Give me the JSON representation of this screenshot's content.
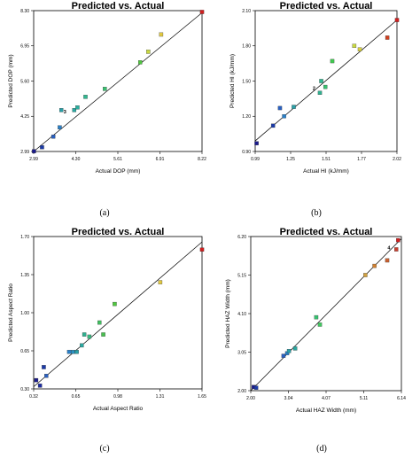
{
  "chart_data": [
    {
      "type": "scatter",
      "title": "Predicted vs. Actual",
      "xlabel": "Actual DOP (mm)",
      "ylabel": "Predicted DOP (mm)",
      "panel_label": "(a)",
      "xlim": [
        2.99,
        8.22
      ],
      "ylim": [
        2.99,
        8.3
      ],
      "xticks": [
        "2.99",
        "4.30",
        "5.61",
        "6.91",
        "8.22"
      ],
      "yticks": [
        "2.99",
        "4.25",
        "5.60",
        "6.95",
        "8.30"
      ],
      "annotations": [
        {
          "text": "3",
          "x": 4.1,
          "y": 4.5
        }
      ],
      "points": [
        {
          "x": 3.0,
          "y": 3.0,
          "color": "#1a1a8c"
        },
        {
          "x": 3.25,
          "y": 3.15,
          "color": "#1a3aa8"
        },
        {
          "x": 3.6,
          "y": 3.55,
          "color": "#2a60c0"
        },
        {
          "x": 3.8,
          "y": 3.9,
          "color": "#2a80c8"
        },
        {
          "x": 3.85,
          "y": 4.55,
          "color": "#2aa0a8"
        },
        {
          "x": 4.25,
          "y": 4.55,
          "color": "#2aa8a0"
        },
        {
          "x": 4.35,
          "y": 4.65,
          "color": "#2ab0a0"
        },
        {
          "x": 4.6,
          "y": 5.05,
          "color": "#30b890"
        },
        {
          "x": 5.2,
          "y": 5.35,
          "color": "#38c070"
        },
        {
          "x": 6.3,
          "y": 6.35,
          "color": "#50c840"
        },
        {
          "x": 6.55,
          "y": 6.75,
          "color": "#c8d840"
        },
        {
          "x": 6.95,
          "y": 7.4,
          "color": "#e0c840"
        },
        {
          "x": 8.22,
          "y": 8.25,
          "color": "#d02020"
        }
      ],
      "line": [
        [
          2.99,
          2.99
        ],
        [
          8.22,
          8.22
        ]
      ]
    },
    {
      "type": "scatter",
      "title": "Predicted vs. Actual",
      "xlabel": "Actual HI (kJ/mm)",
      "ylabel": "Predicted  HI (kJ/mm)",
      "panel_label": "(b)",
      "xlim": [
        0.99,
        2.02
      ],
      "ylim": [
        0.9,
        2.1
      ],
      "xticks": [
        "0.99",
        "1.25",
        "1.51",
        "1.77",
        "2.02"
      ],
      "yticks": [
        "0.90",
        "1.20",
        "1.50",
        "1.80",
        "2.10"
      ],
      "annotations": [
        {
          "text": "2",
          "x": 1.45,
          "y": 1.44
        }
      ],
      "points": [
        {
          "x": 1.0,
          "y": 0.97,
          "color": "#1a1a8c"
        },
        {
          "x": 1.12,
          "y": 1.12,
          "color": "#1a3aa8"
        },
        {
          "x": 1.17,
          "y": 1.27,
          "color": "#2a60c0"
        },
        {
          "x": 1.2,
          "y": 1.2,
          "color": "#2a80c8"
        },
        {
          "x": 1.27,
          "y": 1.28,
          "color": "#2aa0a8"
        },
        {
          "x": 1.46,
          "y": 1.4,
          "color": "#30b090"
        },
        {
          "x": 1.47,
          "y": 1.5,
          "color": "#30b890"
        },
        {
          "x": 1.5,
          "y": 1.45,
          "color": "#38c070"
        },
        {
          "x": 1.55,
          "y": 1.67,
          "color": "#40c850"
        },
        {
          "x": 1.71,
          "y": 1.8,
          "color": "#c8d840"
        },
        {
          "x": 1.75,
          "y": 1.77,
          "color": "#d8d040"
        },
        {
          "x": 1.95,
          "y": 1.87,
          "color": "#d04020"
        },
        {
          "x": 2.02,
          "y": 2.02,
          "color": "#d02020"
        }
      ],
      "line": [
        [
          0.99,
          0.99
        ],
        [
          2.02,
          2.02
        ]
      ]
    },
    {
      "type": "scatter",
      "title": "Predicted vs. Actual",
      "xlabel": "Actual Aspect Ratio",
      "ylabel": "Predicted Aspect Ratio",
      "panel_label": "(c)",
      "xlim": [
        0.32,
        1.65
      ],
      "ylim": [
        0.3,
        1.7
      ],
      "xticks": [
        "0.32",
        "0.65",
        "0.98",
        "1.31",
        "1.65"
      ],
      "yticks": [
        "0.30",
        "0.65",
        "1.00",
        "1.35",
        "1.70"
      ],
      "annotations": [],
      "points": [
        {
          "x": 0.34,
          "y": 0.38,
          "color": "#1a1a8c"
        },
        {
          "x": 0.37,
          "y": 0.33,
          "color": "#1a2aa0"
        },
        {
          "x": 0.4,
          "y": 0.5,
          "color": "#1a3aa8"
        },
        {
          "x": 0.42,
          "y": 0.42,
          "color": "#2a60c0"
        },
        {
          "x": 0.6,
          "y": 0.64,
          "color": "#2a80c8"
        },
        {
          "x": 0.63,
          "y": 0.64,
          "color": "#2a90c0"
        },
        {
          "x": 0.66,
          "y": 0.64,
          "color": "#2aa0a8"
        },
        {
          "x": 0.7,
          "y": 0.7,
          "color": "#2aa8a0"
        },
        {
          "x": 0.72,
          "y": 0.8,
          "color": "#30b090"
        },
        {
          "x": 0.76,
          "y": 0.78,
          "color": "#38b880"
        },
        {
          "x": 0.84,
          "y": 0.91,
          "color": "#40c060"
        },
        {
          "x": 0.87,
          "y": 0.8,
          "color": "#48c050"
        },
        {
          "x": 0.96,
          "y": 1.08,
          "color": "#50c840"
        },
        {
          "x": 1.32,
          "y": 1.28,
          "color": "#e0c840"
        },
        {
          "x": 1.65,
          "y": 1.58,
          "color": "#d02020"
        }
      ],
      "line": [
        [
          0.32,
          0.32
        ],
        [
          1.65,
          1.65
        ]
      ]
    },
    {
      "type": "scatter",
      "title": "Predicted vs. Actual",
      "xlabel": "Actual HAZ Width (mm)",
      "ylabel": "Predicted  HAZ Width (mm)",
      "panel_label": "(d)",
      "xlim": [
        2.0,
        6.14
      ],
      "ylim": [
        2.0,
        6.2
      ],
      "xticks": [
        "2.00",
        "3.04",
        "4.07",
        "5.11",
        "6.14"
      ],
      "yticks": [
        "2.00",
        "3.05",
        "4.10",
        "5.15",
        "6.20"
      ],
      "annotations": [
        {
          "text": "4",
          "x": 5.92,
          "y": 5.9
        }
      ],
      "points": [
        {
          "x": 2.08,
          "y": 2.1,
          "color": "#1a1a8c"
        },
        {
          "x": 2.15,
          "y": 2.08,
          "color": "#1a3aa8"
        },
        {
          "x": 2.9,
          "y": 2.95,
          "color": "#2a60c0"
        },
        {
          "x": 3.0,
          "y": 3.02,
          "color": "#2a80c8"
        },
        {
          "x": 3.05,
          "y": 3.08,
          "color": "#2aa0a8"
        },
        {
          "x": 3.22,
          "y": 3.15,
          "color": "#2aa8a0"
        },
        {
          "x": 3.8,
          "y": 4.0,
          "color": "#38c070"
        },
        {
          "x": 3.9,
          "y": 3.8,
          "color": "#40c860"
        },
        {
          "x": 5.15,
          "y": 5.15,
          "color": "#d0a040"
        },
        {
          "x": 5.4,
          "y": 5.4,
          "color": "#d08030"
        },
        {
          "x": 5.75,
          "y": 5.55,
          "color": "#c86030"
        },
        {
          "x": 6.0,
          "y": 5.85,
          "color": "#c84030"
        },
        {
          "x": 6.05,
          "y": 6.1,
          "color": "#d02020"
        }
      ],
      "line": [
        [
          2.0,
          2.0
        ],
        [
          6.14,
          6.14
        ]
      ]
    }
  ]
}
